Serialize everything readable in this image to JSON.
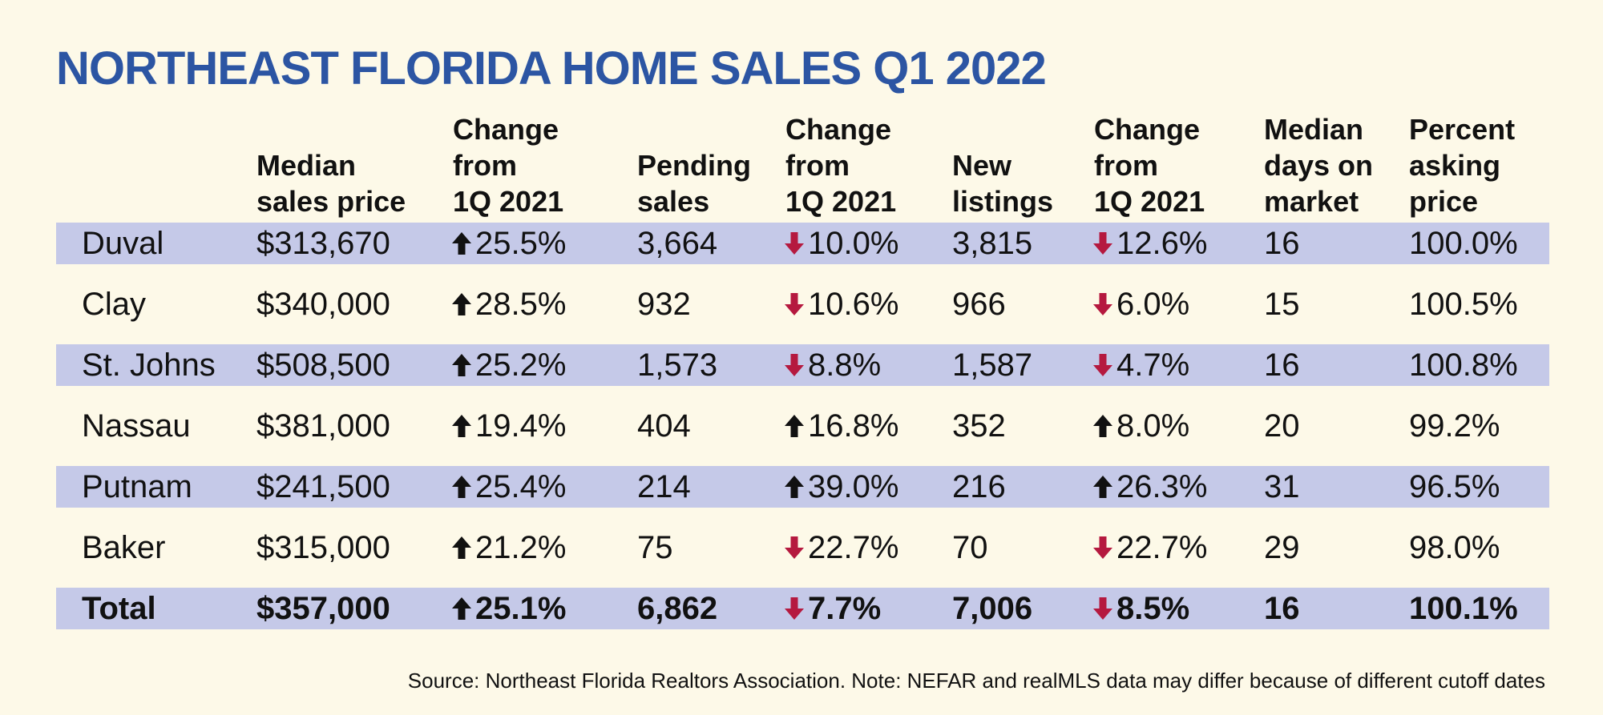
{
  "title": "NORTHEAST FLORIDA HOME SALES Q1 2022",
  "colors": {
    "title": "#2c55a3",
    "background": "#fdf9e8",
    "row_shade": "#c5c9e8",
    "up_arrow": "#111111",
    "down_arrow": "#b5193f"
  },
  "headers": [
    [
      "",
      "",
      ""
    ],
    [
      "",
      "Median",
      "sales price"
    ],
    [
      "Change",
      "from",
      "1Q 2021"
    ],
    [
      "",
      "Pending",
      "sales"
    ],
    [
      "Change",
      "from",
      "1Q 2021"
    ],
    [
      "",
      "New",
      "listings"
    ],
    [
      "Change",
      "from",
      "1Q 2021"
    ],
    [
      "Median",
      "days on",
      "market"
    ],
    [
      "Percent",
      "asking",
      "price"
    ]
  ],
  "rows": [
    {
      "county": "Duval",
      "median_price": "$313,670",
      "price_change": {
        "dir": "up",
        "text": "25.5%"
      },
      "pending": "3,664",
      "pending_change": {
        "dir": "down",
        "text": "10.0%"
      },
      "new_listings": "3,815",
      "listings_change": {
        "dir": "down",
        "text": "12.6%"
      },
      "days": "16",
      "asking": "100.0%"
    },
    {
      "county": "Clay",
      "median_price": "$340,000",
      "price_change": {
        "dir": "up",
        "text": "28.5%"
      },
      "pending": "932",
      "pending_change": {
        "dir": "down",
        "text": "10.6%"
      },
      "new_listings": "966",
      "listings_change": {
        "dir": "down",
        "text": "6.0%"
      },
      "days": "15",
      "asking": "100.5%"
    },
    {
      "county": "St. Johns",
      "median_price": "$508,500",
      "price_change": {
        "dir": "up",
        "text": "25.2%"
      },
      "pending": "1,573",
      "pending_change": {
        "dir": "down",
        "text": "8.8%"
      },
      "new_listings": "1,587",
      "listings_change": {
        "dir": "down",
        "text": "4.7%"
      },
      "days": "16",
      "asking": "100.8%"
    },
    {
      "county": "Nassau",
      "median_price": "$381,000",
      "price_change": {
        "dir": "up",
        "text": "19.4%"
      },
      "pending": "404",
      "pending_change": {
        "dir": "up",
        "text": "16.8%"
      },
      "new_listings": "352",
      "listings_change": {
        "dir": "up",
        "text": "8.0%"
      },
      "days": "20",
      "asking": "99.2%"
    },
    {
      "county": "Putnam",
      "median_price": "$241,500",
      "price_change": {
        "dir": "up",
        "text": "25.4%"
      },
      "pending": "214",
      "pending_change": {
        "dir": "up",
        "text": "39.0%"
      },
      "new_listings": "216",
      "listings_change": {
        "dir": "up",
        "text": "26.3%"
      },
      "days": "31",
      "asking": "96.5%"
    },
    {
      "county": "Baker",
      "median_price": "$315,000",
      "price_change": {
        "dir": "up",
        "text": "21.2%"
      },
      "pending": "75",
      "pending_change": {
        "dir": "down",
        "text": "22.7%"
      },
      "new_listings": "70",
      "listings_change": {
        "dir": "down",
        "text": "22.7%"
      },
      "days": "29",
      "asking": "98.0%"
    },
    {
      "county": "Total",
      "median_price": "$357,000",
      "price_change": {
        "dir": "up",
        "text": "25.1%"
      },
      "pending": "6,862",
      "pending_change": {
        "dir": "down",
        "text": "7.7%"
      },
      "new_listings": "7,006",
      "listings_change": {
        "dir": "down",
        "text": "8.5%"
      },
      "days": "16",
      "asking": "100.1%"
    }
  ],
  "source": "Source: Northeast Florida Realtors Association. Note: NEFAR and realMLS data may differ because of different cutoff dates",
  "chart_data": {
    "type": "table",
    "title": "NORTHEAST FLORIDA HOME SALES Q1 2022",
    "columns": [
      "",
      "Median sales price",
      "Change from 1Q 2021",
      "Pending sales",
      "Change from 1Q 2021",
      "New listings",
      "Change from 1Q 2021",
      "Median days on market",
      "Percent asking price"
    ],
    "rows": [
      [
        "Duval",
        313670,
        25.5,
        3664,
        -10.0,
        3815,
        -12.6,
        16,
        100.0
      ],
      [
        "Clay",
        340000,
        28.5,
        932,
        -10.6,
        966,
        -6.0,
        15,
        100.5
      ],
      [
        "St. Johns",
        508500,
        25.2,
        1573,
        -8.8,
        1587,
        -4.7,
        16,
        100.8
      ],
      [
        "Nassau",
        381000,
        19.4,
        404,
        16.8,
        352,
        8.0,
        20,
        99.2
      ],
      [
        "Putnam",
        241500,
        25.4,
        214,
        39.0,
        216,
        26.3,
        31,
        96.5
      ],
      [
        "Baker",
        315000,
        21.2,
        75,
        -22.7,
        70,
        -22.7,
        29,
        98.0
      ],
      [
        "Total",
        357000,
        25.1,
        6862,
        -7.7,
        7006,
        -8.5,
        16,
        100.1
      ]
    ]
  }
}
